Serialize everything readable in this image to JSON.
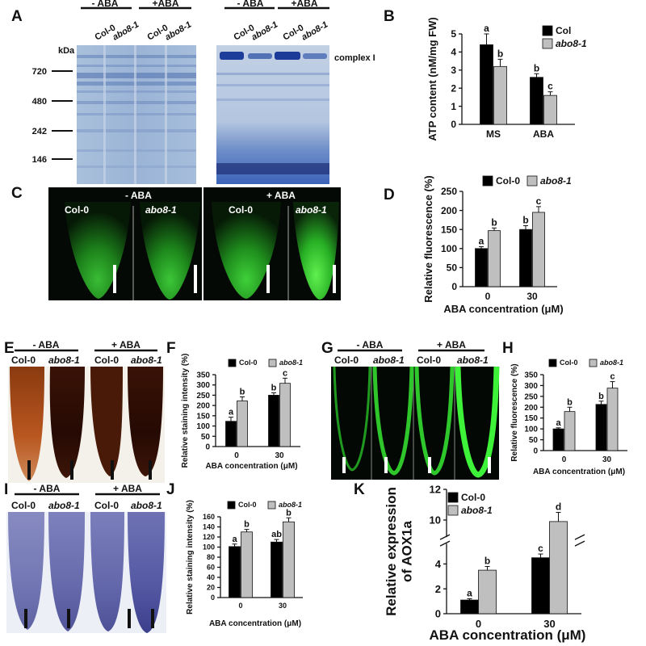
{
  "figure": {
    "panel_A": {
      "label": "A",
      "left_gel": {
        "headers": [
          {
            "text": "- ABA"
          },
          {
            "text": "+ABA"
          }
        ],
        "lanes": [
          "Col-0",
          "abo8-1",
          "Col-0",
          "abo8-1"
        ],
        "kda_label": "kDa",
        "markers": [
          "720",
          "480",
          "242",
          "146"
        ]
      },
      "right_gel": {
        "headers": [
          {
            "text": "- ABA"
          },
          {
            "text": "+ABA"
          }
        ],
        "lanes": [
          "Col-0",
          "abo8-1",
          "Col-0",
          "abo8-1"
        ],
        "band_label": "complex I"
      }
    },
    "panel_C": {
      "label": "C",
      "left": {
        "condition": "- ABA",
        "genotypes": [
          "Col-0",
          "abo8-1"
        ]
      },
      "right": {
        "condition": "+ ABA",
        "genotypes": [
          "Col-0",
          "abo8-1"
        ]
      }
    },
    "panel_E": {
      "label": "E",
      "headers": [
        "- ABA",
        "+ ABA"
      ],
      "lanes": [
        "Col-0",
        "abo8-1",
        "Col-0",
        "abo8-1"
      ]
    },
    "panel_G": {
      "label": "G",
      "headers": [
        "- ABA",
        "+ ABA"
      ],
      "lanes": [
        "Col-0",
        "abo8-1",
        "Col-0",
        "abo8-1"
      ]
    },
    "panel_I": {
      "label": "I",
      "headers": [
        "- ABA",
        "+ ABA"
      ],
      "lanes": [
        "Col-0",
        "abo8-1",
        "Col-0",
        "abo8-1"
      ]
    }
  },
  "chart_data": [
    {
      "panel": "B",
      "type": "bar",
      "categories": [
        "MS",
        "ABA"
      ],
      "series": [
        {
          "name": "Col",
          "color": "#000000",
          "values": [
            4.4,
            2.6
          ],
          "errors": [
            0.6,
            0.2
          ],
          "letters": [
            "a",
            "b"
          ]
        },
        {
          "name": "abo8-1",
          "color": "#bfbfbf",
          "values": [
            3.2,
            1.6
          ],
          "errors": [
            0.4,
            0.2
          ],
          "letters": [
            "b",
            "c"
          ]
        }
      ],
      "ylabel": "ATP content (nM/mg FW)",
      "xlabel": "",
      "ylim": [
        0,
        5
      ],
      "yticks": [
        0,
        1,
        2,
        3,
        4,
        5
      ],
      "legend": "top-right"
    },
    {
      "panel": "D",
      "type": "bar",
      "categories": [
        "0",
        "30"
      ],
      "series": [
        {
          "name": "Col-0",
          "color": "#000000",
          "values": [
            100,
            150
          ],
          "errors": [
            5,
            10
          ],
          "letters": [
            "a",
            "b"
          ]
        },
        {
          "name": "abo8-1",
          "color": "#bfbfbf",
          "values": [
            147,
            195
          ],
          "errors": [
            7,
            15
          ],
          "letters": [
            "b",
            "c"
          ]
        }
      ],
      "ylabel": "Relative fluorescence (%)",
      "xlabel": "ABA concentration (μM)",
      "ylim": [
        0,
        250
      ],
      "yticks": [
        0,
        50,
        100,
        150,
        200,
        250
      ],
      "legend": "top"
    },
    {
      "panel": "F",
      "type": "bar",
      "categories": [
        "0",
        "30"
      ],
      "series": [
        {
          "name": "Col-0",
          "color": "#000000",
          "values": [
            123,
            250
          ],
          "errors": [
            20,
            12
          ],
          "letters": [
            "a",
            "b"
          ]
        },
        {
          "name": "abo8-1",
          "color": "#bfbfbf",
          "values": [
            222,
            308
          ],
          "errors": [
            20,
            25
          ],
          "letters": [
            "b",
            "c"
          ]
        }
      ],
      "ylabel": "Relative staining intensity (%)",
      "xlabel": "ABA concentration (μM)",
      "ylim": [
        0,
        350
      ],
      "yticks": [
        0,
        50,
        100,
        150,
        200,
        250,
        300,
        350
      ],
      "legend": "top"
    },
    {
      "panel": "H",
      "type": "bar",
      "categories": [
        "0",
        "30"
      ],
      "series": [
        {
          "name": "Col-0",
          "color": "#000000",
          "values": [
            100,
            213
          ],
          "errors": [
            5,
            15
          ],
          "letters": [
            "a",
            "b"
          ]
        },
        {
          "name": "abo8-1",
          "color": "#bfbfbf",
          "values": [
            180,
            288
          ],
          "errors": [
            20,
            30
          ],
          "letters": [
            "b",
            "c"
          ]
        }
      ],
      "ylabel": "Relative fluorescence (%)",
      "xlabel": "ABA concentration (μM)",
      "ylim": [
        0,
        350
      ],
      "yticks": [
        0,
        50,
        100,
        150,
        200,
        250,
        300,
        350
      ],
      "legend": "top"
    },
    {
      "panel": "J",
      "type": "bar",
      "categories": [
        "0",
        "30"
      ],
      "series": [
        {
          "name": "Col-0",
          "color": "#000000",
          "values": [
            101,
            110
          ],
          "errors": [
            5,
            5
          ],
          "letters": [
            "a",
            "ab"
          ]
        },
        {
          "name": "abo8-1",
          "color": "#bfbfbf",
          "values": [
            130,
            150
          ],
          "errors": [
            5,
            8
          ],
          "letters": [
            "b",
            "b"
          ]
        }
      ],
      "ylabel": "Relative staining intensity (%)",
      "xlabel": "ABA concentration (μM)",
      "ylim": [
        0,
        160
      ],
      "yticks": [
        0,
        20,
        40,
        60,
        80,
        100,
        120,
        140,
        160
      ],
      "legend": "top"
    },
    {
      "panel": "K",
      "type": "bar",
      "categories": [
        "0",
        "30"
      ],
      "series": [
        {
          "name": "Col-0",
          "color": "#000000",
          "values": [
            1.1,
            4.5
          ],
          "errors": [
            0.1,
            0.3
          ],
          "letters": [
            "a",
            "c"
          ]
        },
        {
          "name": "abo8-1",
          "color": "#bfbfbf",
          "values": [
            3.5,
            9.9
          ],
          "errors": [
            0.3,
            0.6
          ],
          "letters": [
            "b",
            "d"
          ]
        }
      ],
      "ylabel_lines": [
        "Relative expression",
        "of AOX1a"
      ],
      "xlabel": "ABA concentration (μM)",
      "ylim": [
        0,
        12
      ],
      "yticks": [
        0,
        2,
        4,
        10,
        12
      ],
      "axis_break": {
        "from": 5.5,
        "to": 9
      },
      "legend": "top-left"
    }
  ]
}
